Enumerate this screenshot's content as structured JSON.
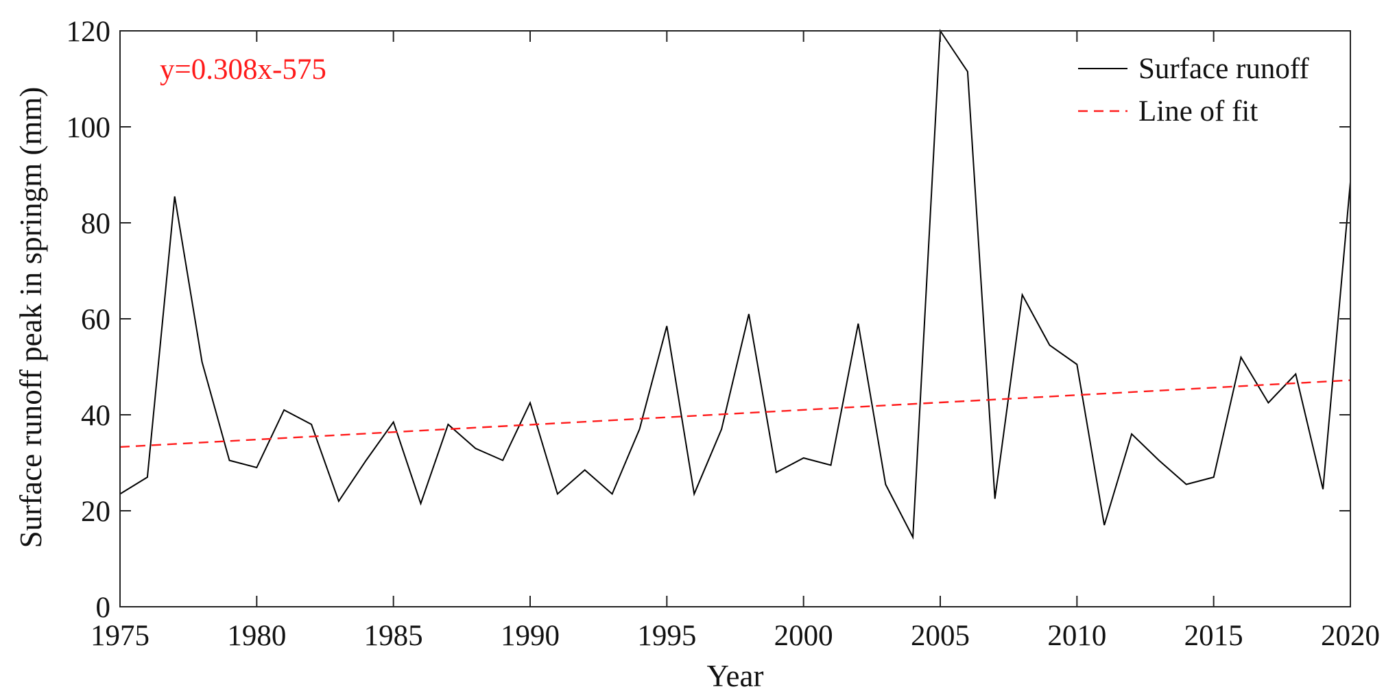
{
  "chart_data": {
    "type": "line",
    "title": "",
    "xlabel": "Year",
    "ylabel": "Surface runoff peak in springm (mm)",
    "xlim": [
      1975,
      2020
    ],
    "ylim": [
      0,
      120
    ],
    "xticks": [
      1975,
      1980,
      1985,
      1990,
      1995,
      2000,
      2005,
      2010,
      2015,
      2020
    ],
    "yticks": [
      0,
      20,
      40,
      60,
      80,
      100,
      120
    ],
    "grid": false,
    "legend_position": "top-right",
    "annotation": "y=0.308x-575",
    "series": [
      {
        "name": "Surface runoff",
        "style": "solid",
        "color": "#000000",
        "x": [
          1975,
          1976,
          1977,
          1978,
          1979,
          1980,
          1981,
          1982,
          1983,
          1984,
          1985,
          1986,
          1987,
          1988,
          1989,
          1990,
          1991,
          1992,
          1993,
          1994,
          1995,
          1996,
          1997,
          1998,
          1999,
          2000,
          2001,
          2002,
          2003,
          2004,
          2005,
          2006,
          2007,
          2008,
          2009,
          2010,
          2011,
          2012,
          2013,
          2014,
          2015,
          2016,
          2017,
          2018,
          2019,
          2020
        ],
        "y": [
          23.5,
          27.0,
          85.5,
          51.0,
          30.5,
          29.0,
          41.0,
          38.0,
          22.0,
          30.5,
          38.5,
          21.5,
          38.0,
          33.0,
          30.5,
          42.5,
          23.5,
          28.5,
          23.5,
          37.0,
          58.5,
          23.5,
          37.0,
          61.0,
          28.0,
          31.0,
          29.5,
          59.0,
          25.5,
          14.5,
          120.0,
          111.5,
          22.5,
          65.0,
          54.5,
          50.5,
          17.0,
          36.0,
          30.5,
          25.5,
          27.0,
          52.0,
          42.5,
          48.5,
          24.5,
          88.5
        ]
      },
      {
        "name": "Line of fit",
        "style": "dashed",
        "color": "#ff1a1a",
        "x": [
          1975,
          2020
        ],
        "y": [
          33.3,
          47.2
        ]
      }
    ]
  }
}
